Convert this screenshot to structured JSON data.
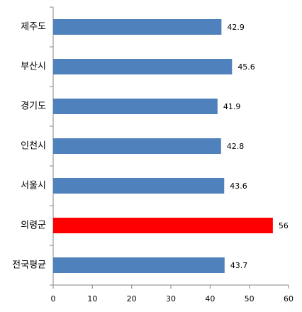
{
  "chart_data": {
    "type": "hbar",
    "categories": [
      "제주도",
      "부산시",
      "경기도",
      "인천시",
      "서울시",
      "의령군",
      "전국평균"
    ],
    "values": [
      42.9,
      45.6,
      41.9,
      42.8,
      43.6,
      56,
      43.7
    ],
    "colors": [
      "#4f81bd",
      "#4f81bd",
      "#4f81bd",
      "#4f81bd",
      "#4f81bd",
      "#ff0000",
      "#4f81bd"
    ],
    "xlim": [
      0,
      60
    ],
    "xticks": [
      0,
      10,
      20,
      30,
      40,
      50,
      60
    ]
  }
}
